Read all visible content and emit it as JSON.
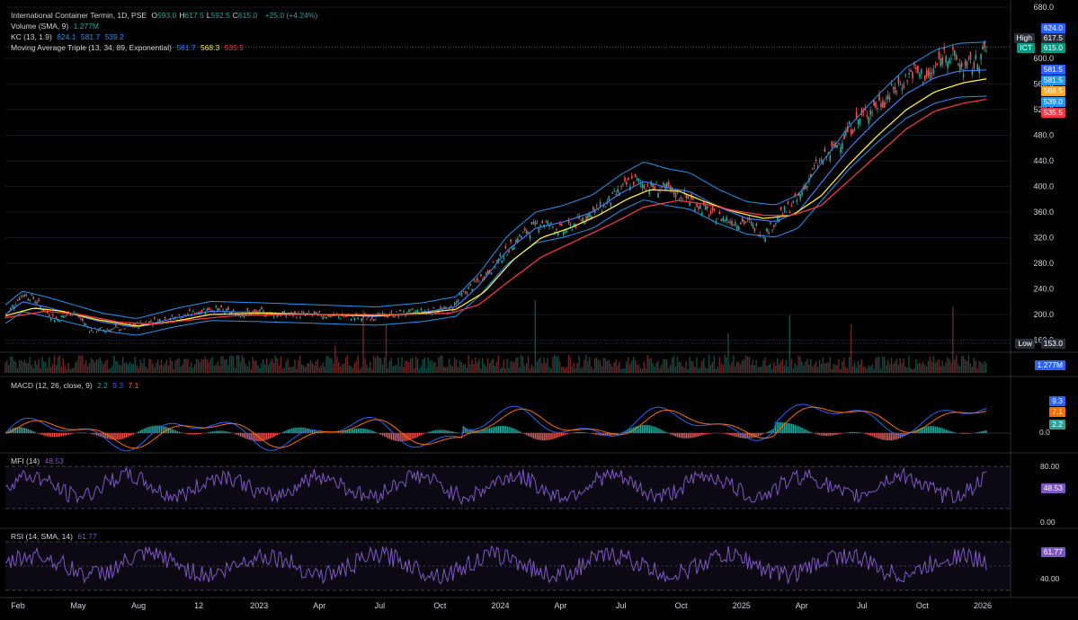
{
  "header": {
    "symbol": "International Container Termin, 1D, PSE",
    "ohlc": [
      {
        "k": "O",
        "v": "593.0"
      },
      {
        "k": "H",
        "v": "617.5"
      },
      {
        "k": "L",
        "v": "592.5"
      },
      {
        "k": "C",
        "v": "615.0"
      }
    ],
    "change": "+25.0 (+4.24%)",
    "volume_label": "Volume (SMA, 9)",
    "volume_value": "1.277M",
    "kc_label": "KC (13, 1.9)",
    "kc_values": [
      "624.1",
      "581.7",
      "539.2"
    ],
    "ma_label": "Moving Average Triple (13, 34, 89, Exponential)",
    "ma_values": [
      "581.7",
      "568.3",
      "535.5"
    ]
  },
  "colors": {
    "up": "#26a69a",
    "down": "#ef5350",
    "kc": "#2196f3",
    "ema_fast": "#3d7bf7",
    "ema_mid": "#ffeb3b",
    "ema_slow": "#f23645",
    "macd": "#2962ff",
    "signal": "#ff6d00",
    "mfi": "#7e57c2",
    "rsi": "#7e57c2"
  },
  "price_tags": [
    {
      "label": "",
      "value": "624.0",
      "bg": "#2962ff"
    },
    {
      "label": "High",
      "value": "617.5",
      "bg": "#2a2e39"
    },
    {
      "label": "ICT",
      "value": "615.0",
      "bg": "#089981"
    },
    {
      "label": "",
      "value": "581.5",
      "bg": "#2962ff"
    },
    {
      "label": "",
      "value": "581.5",
      "bg": "#2196f3"
    },
    {
      "label": "",
      "value": "568.5",
      "bg": "#f9a825"
    },
    {
      "label": "",
      "value": "539.0",
      "bg": "#2196f3"
    },
    {
      "label": "",
      "value": "535.5",
      "bg": "#f23645"
    },
    {
      "label": "Low",
      "value": "153.0",
      "bg": "#2a2e39"
    }
  ],
  "volume_tag": {
    "value": "1.277M",
    "bg": "#2962ff"
  },
  "macd_panel": {
    "label": "MACD (12, 26, close, 9)",
    "values": [
      "2.2",
      "9.3",
      "7.1"
    ],
    "tags": [
      {
        "value": "9.3",
        "bg": "#2962ff"
      },
      {
        "value": "7.1",
        "bg": "#ff6d00"
      },
      {
        "value": "2.2",
        "bg": "#26a69a"
      }
    ],
    "zero_label": "0.0"
  },
  "mfi_panel": {
    "label": "MFI (14)",
    "value": "48.53",
    "ticks": [
      "80.00",
      "0.00"
    ]
  },
  "rsi_panel": {
    "label": "RSI (14, SMA, 14)",
    "value": "61.77",
    "ticks": [
      "40.00"
    ]
  },
  "chart_data": {
    "type": "line",
    "title": "International Container Termin, 1D, PSE",
    "x_ticks": [
      "Feb",
      "May",
      "Aug",
      "12",
      "2023",
      "Apr",
      "Jul",
      "Oct",
      "2024",
      "Apr",
      "Jul",
      "Oct",
      "2025",
      "Apr",
      "Jul",
      "Oct",
      "2026"
    ],
    "y_ticks": [
      "680.0",
      "600.0",
      "560.0",
      "520.0",
      "480.0",
      "440.0",
      "400.0",
      "360.0",
      "320.0",
      "280.0",
      "240.0",
      "200.0",
      "160.0"
    ],
    "ylim": [
      155,
      685
    ],
    "close_series": {
      "name": "ICT",
      "points": [
        [
          0,
          196
        ],
        [
          0.1,
          210
        ],
        [
          0.3,
          232
        ],
        [
          0.5,
          225
        ],
        [
          0.7,
          205
        ],
        [
          0.9,
          192
        ],
        [
          1.2,
          205
        ],
        [
          1.5,
          175
        ],
        [
          2.0,
          178
        ],
        [
          2.6,
          190
        ],
        [
          3.0,
          195
        ],
        [
          3.6,
          210
        ],
        [
          4.0,
          202
        ],
        [
          4.5,
          203
        ],
        [
          4.9,
          200
        ],
        [
          5.3,
          200
        ],
        [
          5.7,
          198
        ],
        [
          6.3,
          195
        ],
        [
          6.8,
          200
        ],
        [
          7.3,
          205
        ],
        [
          7.8,
          208
        ],
        [
          8.0,
          230
        ],
        [
          8.5,
          270
        ],
        [
          9.0,
          320
        ],
        [
          9.4,
          345
        ],
        [
          9.8,
          330
        ],
        [
          10.2,
          355
        ],
        [
          10.5,
          370
        ],
        [
          10.8,
          395
        ],
        [
          11.0,
          410
        ],
        [
          11.3,
          400
        ],
        [
          11.6,
          395
        ],
        [
          12.0,
          380
        ],
        [
          12.4,
          355
        ],
        [
          12.8,
          345
        ],
        [
          13.0,
          345
        ],
        [
          13.3,
          325
        ],
        [
          13.6,
          355
        ],
        [
          13.9,
          380
        ],
        [
          14.2,
          430
        ],
        [
          14.5,
          455
        ],
        [
          14.8,
          490
        ],
        [
          15.1,
          515
        ],
        [
          15.4,
          535
        ],
        [
          15.7,
          560
        ],
        [
          15.9,
          580
        ],
        [
          16.2,
          570
        ],
        [
          16.5,
          612
        ],
        [
          16.8,
          585
        ],
        [
          17.0,
          590
        ],
        [
          17.2,
          615
        ]
      ]
    },
    "ema_13": [
      [
        0,
        200
      ],
      [
        0.3,
        220
      ],
      [
        0.7,
        212
      ],
      [
        1.2,
        200
      ],
      [
        1.7,
        188
      ],
      [
        2.3,
        180
      ],
      [
        3.0,
        195
      ],
      [
        3.6,
        205
      ],
      [
        4.5,
        203
      ],
      [
        5.5,
        200
      ],
      [
        6.5,
        197
      ],
      [
        7.3,
        203
      ],
      [
        7.9,
        212
      ],
      [
        8.3,
        245
      ],
      [
        8.8,
        300
      ],
      [
        9.3,
        335
      ],
      [
        9.8,
        345
      ],
      [
        10.3,
        360
      ],
      [
        10.8,
        390
      ],
      [
        11.2,
        408
      ],
      [
        11.6,
        398
      ],
      [
        12.0,
        392
      ],
      [
        12.5,
        368
      ],
      [
        13.0,
        350
      ],
      [
        13.5,
        345
      ],
      [
        13.9,
        360
      ],
      [
        14.3,
        405
      ],
      [
        14.8,
        460
      ],
      [
        15.3,
        505
      ],
      [
        15.8,
        545
      ],
      [
        16.3,
        570
      ],
      [
        16.7,
        580
      ],
      [
        17.2,
        582
      ]
    ],
    "ema_34": [
      [
        0,
        198
      ],
      [
        0.5,
        210
      ],
      [
        1.0,
        205
      ],
      [
        1.6,
        192
      ],
      [
        2.3,
        182
      ],
      [
        3.0,
        190
      ],
      [
        3.6,
        200
      ],
      [
        4.5,
        202
      ],
      [
        5.5,
        200
      ],
      [
        6.5,
        198
      ],
      [
        7.3,
        202
      ],
      [
        7.9,
        208
      ],
      [
        8.4,
        235
      ],
      [
        8.9,
        285
      ],
      [
        9.4,
        320
      ],
      [
        9.9,
        335
      ],
      [
        10.4,
        355
      ],
      [
        10.9,
        380
      ],
      [
        11.3,
        395
      ],
      [
        11.8,
        393
      ],
      [
        12.3,
        375
      ],
      [
        12.8,
        360
      ],
      [
        13.3,
        350
      ],
      [
        13.8,
        355
      ],
      [
        14.3,
        385
      ],
      [
        14.8,
        435
      ],
      [
        15.3,
        480
      ],
      [
        15.8,
        520
      ],
      [
        16.3,
        548
      ],
      [
        16.8,
        562
      ],
      [
        17.2,
        568
      ]
    ],
    "ema_89": [
      [
        0,
        195
      ],
      [
        0.7,
        205
      ],
      [
        1.3,
        200
      ],
      [
        2.0,
        188
      ],
      [
        2.6,
        185
      ],
      [
        3.3,
        192
      ],
      [
        4.0,
        198
      ],
      [
        5.0,
        200
      ],
      [
        6.0,
        200
      ],
      [
        7.0,
        200
      ],
      [
        7.8,
        202
      ],
      [
        8.3,
        215
      ],
      [
        8.8,
        250
      ],
      [
        9.4,
        290
      ],
      [
        10.0,
        315
      ],
      [
        10.6,
        340
      ],
      [
        11.2,
        368
      ],
      [
        11.8,
        378
      ],
      [
        12.3,
        372
      ],
      [
        12.8,
        362
      ],
      [
        13.3,
        355
      ],
      [
        13.8,
        355
      ],
      [
        14.3,
        370
      ],
      [
        14.8,
        410
      ],
      [
        15.3,
        450
      ],
      [
        15.8,
        490
      ],
      [
        16.3,
        518
      ],
      [
        16.8,
        530
      ],
      [
        17.2,
        536
      ]
    ],
    "kc_upper_last": 624.1,
    "kc_mid_last": 581.7,
    "kc_lower_last": 539.2
  }
}
